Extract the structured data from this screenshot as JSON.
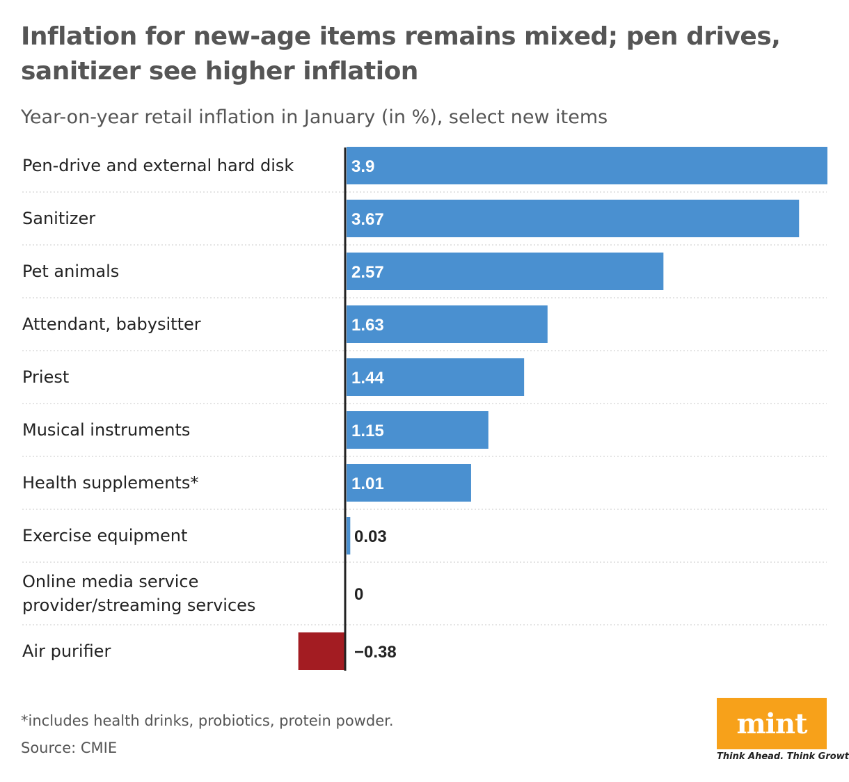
{
  "header": {
    "title": "Inflation for new-age items remains mixed; pen drives, sanitizer see higher inflation",
    "subtitle": "Year-on-year retail inflation in January (in %), select new items"
  },
  "chart_data": {
    "type": "bar",
    "orientation": "horizontal",
    "title": "Inflation for new-age items remains mixed; pen drives, sanitizer see higher inflation",
    "subtitle": "Year-on-year retail inflation in January (in %), select new items",
    "categories": [
      "Pen-drive and external hard disk",
      "Sanitizer",
      "Pet animals",
      "Attendant, babysitter",
      "Priest",
      "Musical instruments",
      "Health supplements*",
      "Exercise equipment",
      "Online media service provider/streaming services",
      "Air purifier"
    ],
    "values": [
      3.9,
      3.67,
      2.57,
      1.63,
      1.44,
      1.15,
      1.01,
      0.03,
      0,
      -0.38
    ],
    "value_labels": [
      "3.9",
      "3.67",
      "2.57",
      "1.63",
      "1.44",
      "1.15",
      "1.01",
      "0.03",
      "0",
      "−0.38"
    ],
    "xlim": [
      -0.38,
      3.9
    ],
    "grid": false,
    "colors": {
      "positive": "#4a90d0",
      "negative": "#a31c22"
    }
  },
  "footer": {
    "footnote": "*includes health drinks, probiotics, protein powder.",
    "source": "Source: CMIE"
  },
  "brand": {
    "logo_text": "mint",
    "tagline": "Think Ahead. Think Growth.",
    "color": "#f7a11a"
  }
}
